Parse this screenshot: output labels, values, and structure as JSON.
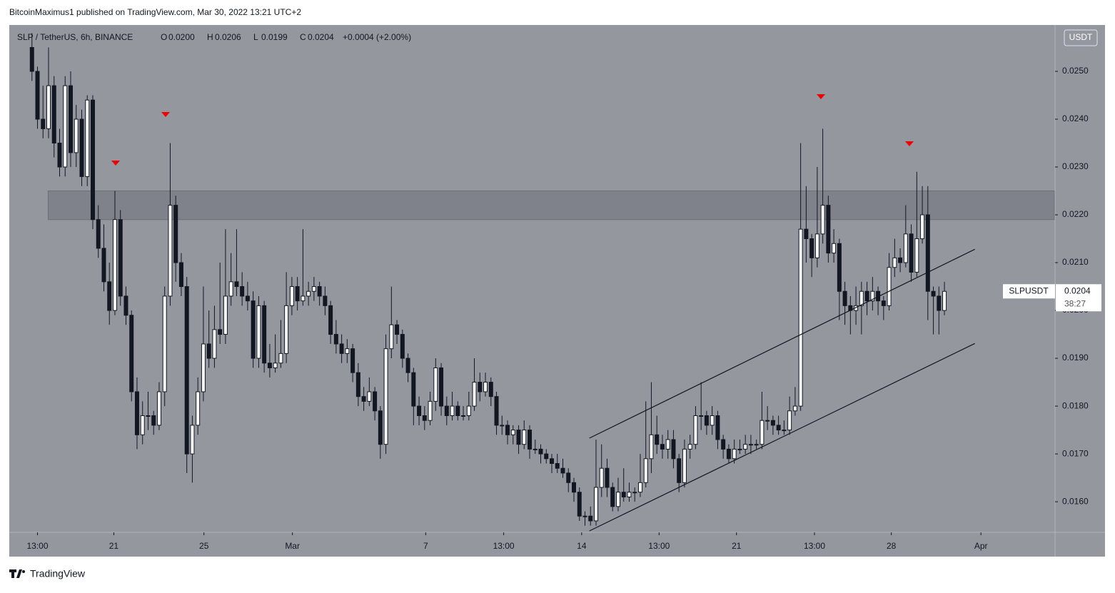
{
  "header": {
    "published": "BitcoinMaximus1 published on TradingView.com, Mar 30, 2022 13:21 UTC+2"
  },
  "footer": {
    "brand": "TradingView"
  },
  "chart_data": {
    "type": "candlestick",
    "title": "SLP / TetherUS, 6h, BINANCE",
    "ohlc": [
      {
        "label": "O",
        "value": "0.0200"
      },
      {
        "label": "H",
        "value": "0.0206"
      },
      {
        "label": "L",
        "value": "0.0199"
      },
      {
        "label": "C",
        "value": "0.0204"
      }
    ],
    "change": "+0.0004 (+2.00%)",
    "currency": "USDT",
    "price_marker": {
      "name": "SLPUSDT",
      "value": 0.0204,
      "label": "0.0204",
      "countdown": "38:27"
    },
    "ylim": [
      0.01536,
      0.02597
    ],
    "yticks": [
      {
        "value": 0.016,
        "label": "0.0160"
      },
      {
        "value": 0.017,
        "label": "0.0170"
      },
      {
        "value": 0.018,
        "label": "0.0180"
      },
      {
        "value": 0.019,
        "label": "0.0190"
      },
      {
        "value": 0.02,
        "label": "0.0200"
      },
      {
        "value": 0.021,
        "label": "0.0210"
      },
      {
        "value": 0.022,
        "label": "0.0220"
      },
      {
        "value": 0.023,
        "label": "0.0230"
      },
      {
        "value": 0.024,
        "label": "0.0240"
      },
      {
        "value": 0.025,
        "label": "0.0250"
      }
    ],
    "xlim": [
      -4.1,
      185
    ],
    "xticks": [
      {
        "value": 1.0,
        "label": "13:00"
      },
      {
        "value": 14.8,
        "label": "21"
      },
      {
        "value": 31.1,
        "label": "25"
      },
      {
        "value": 47.1,
        "label": "Mar"
      },
      {
        "value": 71.2,
        "label": "7"
      },
      {
        "value": 85.3,
        "label": "13:00"
      },
      {
        "value": 99.4,
        "label": "14"
      },
      {
        "value": 113.4,
        "label": "13:00"
      },
      {
        "value": 127.4,
        "label": "21"
      },
      {
        "value": 141.5,
        "label": "13:00"
      },
      {
        "value": 155.4,
        "label": "28"
      },
      {
        "value": 171.6,
        "label": "Apr"
      }
    ],
    "zone": [
      0.0219,
      0.0225
    ],
    "trendlines": [
      {
        "x": [
          100.8,
          170.5
        ],
        "y": [
          0.01733,
          0.02128
        ]
      },
      {
        "x": [
          100.8,
          170.5
        ],
        "y": [
          0.01539,
          0.01931
        ]
      }
    ],
    "colors": {
      "up": "#ffffff",
      "down": "#131722",
      "background": "#95979f"
    },
    "series": [
      {
        "name": "SLPUSDT",
        "values": [
          [
            0.0255,
            0.0258,
            0.0248,
            0.025
          ],
          [
            0.025,
            0.0251,
            0.0238,
            0.024
          ],
          [
            0.024,
            0.0247,
            0.0236,
            0.0238
          ],
          [
            0.0238,
            0.0255,
            0.0236,
            0.0247
          ],
          [
            0.0247,
            0.0249,
            0.0232,
            0.0235
          ],
          [
            0.0235,
            0.0238,
            0.0228,
            0.023
          ],
          [
            0.023,
            0.0249,
            0.0228,
            0.0247
          ],
          [
            0.0247,
            0.025,
            0.023,
            0.0233
          ],
          [
            0.0233,
            0.0243,
            0.023,
            0.024
          ],
          [
            0.024,
            0.0242,
            0.0226,
            0.0228
          ],
          [
            0.0228,
            0.0245,
            0.0226,
            0.0244
          ],
          [
            0.0244,
            0.0245,
            0.0217,
            0.0219
          ],
          [
            0.0219,
            0.0222,
            0.0211,
            0.0213
          ],
          [
            0.0213,
            0.0218,
            0.0204,
            0.0206
          ],
          [
            0.0206,
            0.021,
            0.0197,
            0.02
          ],
          [
            0.02,
            0.0225,
            0.0199,
            0.0219
          ],
          [
            0.0219,
            0.0221,
            0.0201,
            0.0203
          ],
          [
            0.0203,
            0.0205,
            0.0197,
            0.0199
          ],
          [
            0.0199,
            0.02,
            0.0181,
            0.0183
          ],
          [
            0.0183,
            0.0186,
            0.0171,
            0.0174
          ],
          [
            0.0174,
            0.0181,
            0.0172,
            0.0178
          ],
          [
            0.0178,
            0.0183,
            0.0175,
            0.0178
          ],
          [
            0.0178,
            0.0179,
            0.0174,
            0.0176
          ],
          [
            0.0176,
            0.0185,
            0.0175,
            0.0183
          ],
          [
            0.0183,
            0.0205,
            0.018,
            0.0203
          ],
          [
            0.0203,
            0.0235,
            0.0201,
            0.0222
          ],
          [
            0.0222,
            0.0224,
            0.0206,
            0.021
          ],
          [
            0.021,
            0.0212,
            0.0203,
            0.0205
          ],
          [
            0.0205,
            0.0207,
            0.0166,
            0.017
          ],
          [
            0.017,
            0.0178,
            0.0164,
            0.0176
          ],
          [
            0.0176,
            0.0186,
            0.0174,
            0.0183
          ],
          [
            0.0183,
            0.0205,
            0.0181,
            0.0193
          ],
          [
            0.0193,
            0.02,
            0.0188,
            0.019
          ],
          [
            0.019,
            0.0201,
            0.0188,
            0.0196
          ],
          [
            0.0196,
            0.021,
            0.0193,
            0.0195
          ],
          [
            0.0195,
            0.0217,
            0.0193,
            0.0203
          ],
          [
            0.0203,
            0.0212,
            0.0201,
            0.0206
          ],
          [
            0.0206,
            0.0217,
            0.0203,
            0.0205
          ],
          [
            0.0205,
            0.0208,
            0.0201,
            0.0203
          ],
          [
            0.0203,
            0.0206,
            0.02,
            0.0202
          ],
          [
            0.0202,
            0.0204,
            0.0188,
            0.019
          ],
          [
            0.019,
            0.0203,
            0.0188,
            0.0201
          ],
          [
            0.0201,
            0.0202,
            0.0187,
            0.0189
          ],
          [
            0.0189,
            0.0193,
            0.0186,
            0.0188
          ],
          [
            0.0188,
            0.0195,
            0.0187,
            0.0189
          ],
          [
            0.0189,
            0.0198,
            0.0188,
            0.0191
          ],
          [
            0.0191,
            0.0208,
            0.0189,
            0.0201
          ],
          [
            0.0201,
            0.0207,
            0.0199,
            0.0205
          ],
          [
            0.0205,
            0.0207,
            0.02,
            0.0202
          ],
          [
            0.0202,
            0.0217,
            0.0201,
            0.0203
          ],
          [
            0.0203,
            0.0206,
            0.0201,
            0.0204
          ],
          [
            0.0204,
            0.0207,
            0.0202,
            0.0205
          ],
          [
            0.0205,
            0.0206,
            0.0201,
            0.0203
          ],
          [
            0.0203,
            0.0205,
            0.0199,
            0.0201
          ],
          [
            0.0201,
            0.0202,
            0.0193,
            0.0195
          ],
          [
            0.0195,
            0.0198,
            0.0191,
            0.0193
          ],
          [
            0.0193,
            0.0195,
            0.0189,
            0.0191
          ],
          [
            0.0191,
            0.0194,
            0.0189,
            0.0192
          ],
          [
            0.0192,
            0.0193,
            0.0185,
            0.0187
          ],
          [
            0.0187,
            0.0189,
            0.018,
            0.0182
          ],
          [
            0.0182,
            0.0184,
            0.0179,
            0.0181
          ],
          [
            0.0181,
            0.0186,
            0.018,
            0.0183
          ],
          [
            0.0183,
            0.0184,
            0.0177,
            0.0179
          ],
          [
            0.0179,
            0.018,
            0.0169,
            0.0172
          ],
          [
            0.0172,
            0.0195,
            0.017,
            0.0192
          ],
          [
            0.0192,
            0.0205,
            0.019,
            0.0197
          ],
          [
            0.0197,
            0.0198,
            0.0193,
            0.0195
          ],
          [
            0.0195,
            0.0196,
            0.0188,
            0.019
          ],
          [
            0.019,
            0.0191,
            0.0185,
            0.0187
          ],
          [
            0.0187,
            0.0188,
            0.0176,
            0.018
          ],
          [
            0.018,
            0.0182,
            0.0176,
            0.0178
          ],
          [
            0.0178,
            0.018,
            0.0175,
            0.0177
          ],
          [
            0.0177,
            0.0183,
            0.0176,
            0.0181
          ],
          [
            0.0181,
            0.019,
            0.0179,
            0.0188
          ],
          [
            0.0188,
            0.0189,
            0.0178,
            0.018
          ],
          [
            0.018,
            0.0182,
            0.0176,
            0.0178
          ],
          [
            0.0178,
            0.0183,
            0.0177,
            0.018
          ],
          [
            0.018,
            0.0181,
            0.0177,
            0.0178
          ],
          [
            0.0178,
            0.018,
            0.0177,
            0.0178
          ],
          [
            0.0178,
            0.0183,
            0.0177,
            0.018
          ],
          [
            0.018,
            0.019,
            0.0179,
            0.0185
          ],
          [
            0.0185,
            0.0187,
            0.0181,
            0.0183
          ],
          [
            0.0183,
            0.0187,
            0.0182,
            0.0185
          ],
          [
            0.0185,
            0.0186,
            0.018,
            0.0182
          ],
          [
            0.0182,
            0.0183,
            0.0174,
            0.0176
          ],
          [
            0.0176,
            0.0178,
            0.0174,
            0.0176
          ],
          [
            0.0176,
            0.0177,
            0.0172,
            0.0174
          ],
          [
            0.0174,
            0.0176,
            0.0172,
            0.0175
          ],
          [
            0.0175,
            0.0176,
            0.017,
            0.0172
          ],
          [
            0.0172,
            0.0177,
            0.0171,
            0.0175
          ],
          [
            0.0175,
            0.0176,
            0.0169,
            0.0171
          ],
          [
            0.0171,
            0.0173,
            0.017,
            0.0171
          ],
          [
            0.0171,
            0.0172,
            0.0168,
            0.017
          ],
          [
            0.017,
            0.0171,
            0.0168,
            0.0169
          ],
          [
            0.0169,
            0.017,
            0.0166,
            0.0168
          ],
          [
            0.0168,
            0.017,
            0.0166,
            0.0167
          ],
          [
            0.0167,
            0.0169,
            0.0165,
            0.0166
          ],
          [
            0.0166,
            0.0167,
            0.0162,
            0.0164
          ],
          [
            0.0164,
            0.0165,
            0.016,
            0.0162
          ],
          [
            0.0162,
            0.0163,
            0.0156,
            0.0157
          ],
          [
            0.0157,
            0.0158,
            0.0155,
            0.0157
          ],
          [
            0.0157,
            0.0159,
            0.0155,
            0.0156
          ],
          [
            0.0156,
            0.0173,
            0.0155,
            0.0163
          ],
          [
            0.0163,
            0.0172,
            0.0161,
            0.0167
          ],
          [
            0.0167,
            0.0169,
            0.0161,
            0.0163
          ],
          [
            0.0163,
            0.0164,
            0.0158,
            0.0159
          ],
          [
            0.0159,
            0.0165,
            0.0158,
            0.0162
          ],
          [
            0.0162,
            0.0167,
            0.016,
            0.0161
          ],
          [
            0.0161,
            0.0164,
            0.016,
            0.0162
          ],
          [
            0.0162,
            0.0163,
            0.016,
            0.0162
          ],
          [
            0.0162,
            0.017,
            0.0161,
            0.0164
          ],
          [
            0.0164,
            0.0181,
            0.0163,
            0.0169
          ],
          [
            0.0169,
            0.0185,
            0.0166,
            0.0174
          ],
          [
            0.0174,
            0.0178,
            0.017,
            0.0172
          ],
          [
            0.0172,
            0.0174,
            0.0169,
            0.0171
          ],
          [
            0.0171,
            0.0175,
            0.0169,
            0.0173
          ],
          [
            0.0173,
            0.0175,
            0.0167,
            0.0169
          ],
          [
            0.0169,
            0.017,
            0.0162,
            0.0164
          ],
          [
            0.0164,
            0.0173,
            0.0163,
            0.0171
          ],
          [
            0.0171,
            0.0174,
            0.0169,
            0.0172
          ],
          [
            0.0172,
            0.018,
            0.0171,
            0.0178
          ],
          [
            0.0178,
            0.0185,
            0.0175,
            0.0178
          ],
          [
            0.0178,
            0.0179,
            0.0174,
            0.0176
          ],
          [
            0.0176,
            0.018,
            0.0174,
            0.0178
          ],
          [
            0.0178,
            0.0179,
            0.0171,
            0.0173
          ],
          [
            0.0173,
            0.0174,
            0.0169,
            0.0171
          ],
          [
            0.0171,
            0.0172,
            0.0168,
            0.0169
          ],
          [
            0.0169,
            0.0173,
            0.0168,
            0.0171
          ],
          [
            0.0171,
            0.0173,
            0.017,
            0.0171
          ],
          [
            0.0171,
            0.0174,
            0.017,
            0.0172
          ],
          [
            0.0172,
            0.0174,
            0.017,
            0.0172
          ],
          [
            0.0172,
            0.0173,
            0.0171,
            0.0172
          ],
          [
            0.0172,
            0.0183,
            0.0171,
            0.0177
          ],
          [
            0.0177,
            0.018,
            0.0175,
            0.0177
          ],
          [
            0.0177,
            0.0178,
            0.0174,
            0.0176
          ],
          [
            0.0176,
            0.0178,
            0.0174,
            0.0175
          ],
          [
            0.0175,
            0.0177,
            0.0174,
            0.0175
          ],
          [
            0.0175,
            0.0182,
            0.0174,
            0.0179
          ],
          [
            0.0179,
            0.0184,
            0.0178,
            0.018
          ],
          [
            0.018,
            0.0235,
            0.0179,
            0.0217
          ],
          [
            0.0217,
            0.0226,
            0.021,
            0.0215
          ],
          [
            0.0215,
            0.0216,
            0.0207,
            0.0211
          ],
          [
            0.0211,
            0.023,
            0.0209,
            0.0216
          ],
          [
            0.0216,
            0.0238,
            0.0214,
            0.0222
          ],
          [
            0.0222,
            0.0224,
            0.021,
            0.0212
          ],
          [
            0.0212,
            0.0217,
            0.021,
            0.0214
          ],
          [
            0.0214,
            0.0215,
            0.0198,
            0.0204
          ],
          [
            0.0204,
            0.0206,
            0.0197,
            0.0201
          ],
          [
            0.0201,
            0.0203,
            0.0195,
            0.02
          ],
          [
            0.02,
            0.0205,
            0.0197,
            0.0201
          ],
          [
            0.0201,
            0.0206,
            0.0195,
            0.0204
          ],
          [
            0.0204,
            0.0206,
            0.0199,
            0.0202
          ],
          [
            0.0202,
            0.0207,
            0.02,
            0.0204
          ],
          [
            0.0204,
            0.0205,
            0.0199,
            0.0202
          ],
          [
            0.0202,
            0.0203,
            0.0198,
            0.0201
          ],
          [
            0.0201,
            0.0212,
            0.02,
            0.0209
          ],
          [
            0.0209,
            0.0215,
            0.0207,
            0.0211
          ],
          [
            0.0211,
            0.0213,
            0.0208,
            0.021
          ],
          [
            0.021,
            0.0222,
            0.0209,
            0.0216
          ],
          [
            0.0216,
            0.0218,
            0.0206,
            0.0208
          ],
          [
            0.0208,
            0.0229,
            0.0207,
            0.0215
          ],
          [
            0.0215,
            0.0226,
            0.0214,
            0.022
          ],
          [
            0.022,
            0.0226,
            0.0198,
            0.0204
          ],
          [
            0.0204,
            0.0205,
            0.0195,
            0.0203
          ],
          [
            0.0203,
            0.0205,
            0.0195,
            0.02
          ],
          [
            0.02,
            0.0206,
            0.0199,
            0.0204
          ]
        ]
      }
    ]
  }
}
